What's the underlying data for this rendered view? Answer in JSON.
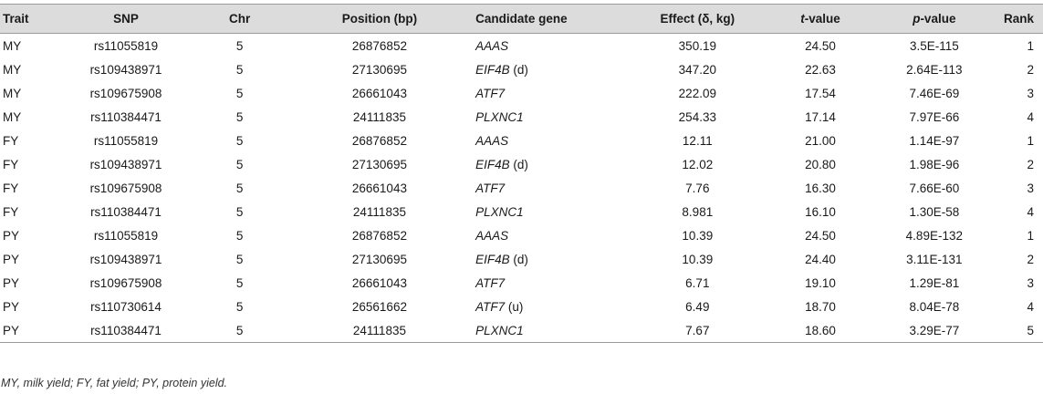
{
  "table": {
    "headers": {
      "trait": "Trait",
      "snp": "SNP",
      "chr": "Chr",
      "position": "Position (bp)",
      "gene": "Candidate gene",
      "effect": "Effect (δ, kg)",
      "t_italic": "t",
      "t_rest": "-value",
      "p_italic": "p",
      "p_rest": "-value",
      "rank": "Rank"
    },
    "rows": [
      {
        "trait": "MY",
        "snp": "rs11055819",
        "chr": "5",
        "position": "26876852",
        "gene": "AAAS",
        "gene_note": "",
        "effect": "350.19",
        "t": "24.50",
        "p": "3.5E-115",
        "rank": "1"
      },
      {
        "trait": "MY",
        "snp": "rs109438971",
        "chr": "5",
        "position": "27130695",
        "gene": "EIF4B",
        "gene_note": " (d)",
        "effect": "347.20",
        "t": "22.63",
        "p": "2.64E-113",
        "rank": "2"
      },
      {
        "trait": "MY",
        "snp": "rs109675908",
        "chr": "5",
        "position": "26661043",
        "gene": "ATF7",
        "gene_note": "",
        "effect": "222.09",
        "t": "17.54",
        "p": "7.46E-69",
        "rank": "3"
      },
      {
        "trait": "MY",
        "snp": "rs110384471",
        "chr": "5",
        "position": "24111835",
        "gene": "PLXNC1",
        "gene_note": "",
        "effect": "254.33",
        "t": "17.14",
        "p": "7.97E-66",
        "rank": "4"
      },
      {
        "trait": "FY",
        "snp": "rs11055819",
        "chr": "5",
        "position": "26876852",
        "gene": "AAAS",
        "gene_note": "",
        "effect": "12.11",
        "t": "21.00",
        "p": "1.14E-97",
        "rank": "1"
      },
      {
        "trait": "FY",
        "snp": "rs109438971",
        "chr": "5",
        "position": "27130695",
        "gene": "EIF4B",
        "gene_note": " (d)",
        "effect": "12.02",
        "t": "20.80",
        "p": "1.98E-96",
        "rank": "2"
      },
      {
        "trait": "FY",
        "snp": "rs109675908",
        "chr": "5",
        "position": "26661043",
        "gene": "ATF7",
        "gene_note": "",
        "effect": "7.76",
        "t": "16.30",
        "p": "7.66E-60",
        "rank": "3"
      },
      {
        "trait": "FY",
        "snp": "rs110384471",
        "chr": "5",
        "position": "24111835",
        "gene": "PLXNC1",
        "gene_note": "",
        "effect": "8.981",
        "t": "16.10",
        "p": "1.30E-58",
        "rank": "4"
      },
      {
        "trait": "PY",
        "snp": "rs11055819",
        "chr": "5",
        "position": "26876852",
        "gene": "AAAS",
        "gene_note": "",
        "effect": "10.39",
        "t": "24.50",
        "p": "4.89E-132",
        "rank": "1"
      },
      {
        "trait": "PY",
        "snp": "rs109438971",
        "chr": "5",
        "position": "27130695",
        "gene": "EIF4B",
        "gene_note": " (d)",
        "effect": "10.39",
        "t": "24.40",
        "p": "3.11E-131",
        "rank": "2"
      },
      {
        "trait": "PY",
        "snp": "rs109675908",
        "chr": "5",
        "position": "26661043",
        "gene": "ATF7",
        "gene_note": "",
        "effect": "6.71",
        "t": "19.10",
        "p": "1.29E-81",
        "rank": "3"
      },
      {
        "trait": "PY",
        "snp": "rs110730614",
        "chr": "5",
        "position": "26561662",
        "gene": "ATF7",
        "gene_note": " (u)",
        "effect": "6.49",
        "t": "18.70",
        "p": "8.04E-78",
        "rank": "4"
      },
      {
        "trait": "PY",
        "snp": "rs110384471",
        "chr": "5",
        "position": "24111835",
        "gene": "PLXNC1",
        "gene_note": "",
        "effect": "7.67",
        "t": "18.60",
        "p": "3.29E-77",
        "rank": "5"
      }
    ]
  },
  "footnote": "MY, milk yield; FY, fat yield; PY, protein yield."
}
